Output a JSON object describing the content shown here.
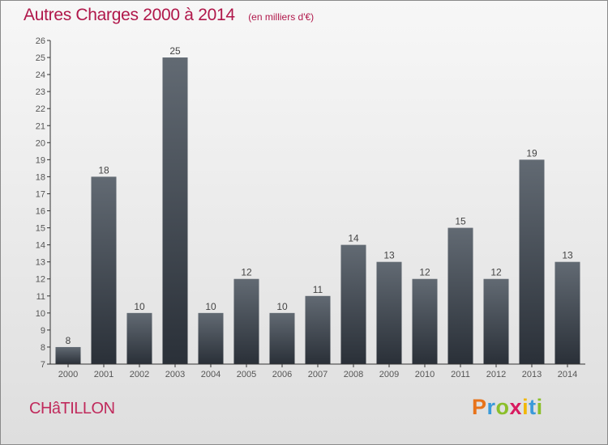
{
  "title": "Autres Charges 2000 à 2014",
  "unit": "(en milliers d'€)",
  "location": "CHâTILLON",
  "brand": {
    "letters": [
      "P",
      "r",
      "o",
      "x",
      "i",
      "t",
      "i"
    ],
    "colors": [
      "#e8731a",
      "#3a9ad9",
      "#8bbf2a",
      "#d81b60",
      "#f2b705",
      "#3a9ad9",
      "#8bbf2a"
    ]
  },
  "chart_data": {
    "type": "bar",
    "categories": [
      "2000",
      "2001",
      "2002",
      "2003",
      "2004",
      "2005",
      "2006",
      "2007",
      "2008",
      "2009",
      "2010",
      "2011",
      "2012",
      "2013",
      "2014"
    ],
    "values": [
      8,
      18,
      10,
      25,
      10,
      12,
      10,
      11,
      14,
      13,
      12,
      15,
      12,
      19,
      13
    ],
    "title": "Autres Charges 2000 à 2014",
    "xlabel": "",
    "ylabel": "",
    "ylim": [
      7,
      26
    ],
    "yticks": [
      7,
      8,
      9,
      10,
      11,
      12,
      13,
      14,
      15,
      16,
      17,
      18,
      19,
      20,
      21,
      22,
      23,
      24,
      25,
      26
    ],
    "grid": false,
    "data_labels": true,
    "colors": {
      "bar_top": "#626a73",
      "bar_bottom": "#2a3038",
      "axis": "#333333"
    }
  }
}
